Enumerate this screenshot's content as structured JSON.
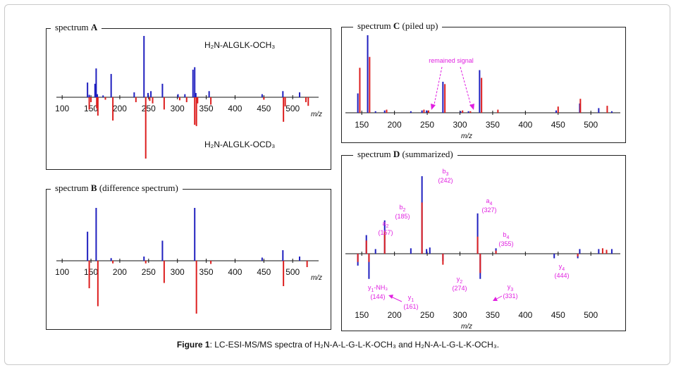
{
  "caption": {
    "label": "Figure 1",
    "text": ": LC-ESI-MS/MS spectra of H₂N-A-L-G-L-K-OCH₃ and H₂N-A-L-G-L-K-OCH₃."
  },
  "colors": {
    "blue": "#1f1fbf",
    "red": "#dd1f1f",
    "annotation": "#e020e0"
  },
  "chart_data": [
    {
      "id": "A",
      "type": "bar",
      "title_letter": "A",
      "title_prefix": "spectrum ",
      "title_suffix": "",
      "xlabel": "m/z",
      "xlim": [
        90,
        545
      ],
      "ticks": [
        100,
        150,
        200,
        250,
        300,
        350,
        400,
        450,
        500
      ],
      "labels": [
        {
          "text": "H₂N-ALGLK-OCH₃",
          "color": "#111111"
        },
        {
          "text": "H₂N-ALGLK-OCD₃",
          "color": "#111111"
        }
      ],
      "series": [
        {
          "name": "H₂N-ALGLK-OCH₃",
          "color": "#1f1fbf",
          "peaks": [
            [
              144,
              24
            ],
            [
              147,
              4
            ],
            [
              157,
              22
            ],
            [
              159,
              47
            ],
            [
              161,
              5
            ],
            [
              171,
              3
            ],
            [
              185,
              38
            ],
            [
              225,
              8
            ],
            [
              242,
              100
            ],
            [
              249,
              7
            ],
            [
              254,
              10
            ],
            [
              274,
              22
            ],
            [
              301,
              5
            ],
            [
              313,
              5
            ],
            [
              327,
              45
            ],
            [
              330,
              49
            ],
            [
              332,
              7
            ],
            [
              355,
              10
            ],
            [
              447,
              5
            ],
            [
              483,
              10
            ],
            [
              512,
              8
            ]
          ]
        },
        {
          "name": "H₂N-ALGLK-OCD₃",
          "color": "#dd1f1f",
          "peaks": [
            [
              147,
              -20
            ],
            [
              150,
              -8
            ],
            [
              160,
              -18
            ],
            [
              162,
              -30
            ],
            [
              175,
              -4
            ],
            [
              188,
              -38
            ],
            [
              228,
              -8
            ],
            [
              245,
              -100
            ],
            [
              252,
              -6
            ],
            [
              257,
              -10
            ],
            [
              277,
              -20
            ],
            [
              304,
              -5
            ],
            [
              316,
              -8
            ],
            [
              330,
              -45
            ],
            [
              333,
              -47
            ],
            [
              335,
              -10
            ],
            [
              358,
              -12
            ],
            [
              450,
              -4
            ],
            [
              484,
              -40
            ],
            [
              487,
              -15
            ],
            [
              523,
              -8
            ],
            [
              527,
              -14
            ]
          ]
        }
      ]
    },
    {
      "id": "B",
      "type": "bar",
      "title_letter": "B",
      "title_prefix": "spectrum ",
      "title_suffix": " (difference spectrum)",
      "xlabel": "m/z",
      "xlim": [
        90,
        545
      ],
      "ticks": [
        100,
        150,
        200,
        250,
        300,
        350,
        400,
        450,
        500
      ],
      "labels": [],
      "series": [
        {
          "color": "#1f1fbf",
          "peaks": [
            [
              144,
              55
            ],
            [
              159,
              100
            ],
            [
              185,
              5
            ],
            [
              242,
              8
            ],
            [
              274,
              38
            ],
            [
              330,
              100
            ],
            [
              447,
              6
            ],
            [
              483,
              20
            ],
            [
              512,
              8
            ]
          ]
        },
        {
          "color": "#dd1f1f",
          "peaks": [
            [
              147,
              -52
            ],
            [
              162,
              -86
            ],
            [
              188,
              -5
            ],
            [
              245,
              -5
            ],
            [
              277,
              -42
            ],
            [
              333,
              -100
            ],
            [
              358,
              -6
            ],
            [
              484,
              -48
            ],
            [
              525,
              -12
            ]
          ]
        }
      ]
    },
    {
      "id": "C",
      "type": "bar",
      "title_letter": "C",
      "title_prefix": "spectrum ",
      "title_suffix": " (piled up)",
      "xlabel": "m/z",
      "xlim": [
        125,
        545
      ],
      "ticks": [
        150,
        200,
        250,
        300,
        350,
        400,
        450,
        500
      ],
      "labels": [
        {
          "text": "remained signal",
          "color": "#e020e0"
        }
      ],
      "series": [
        {
          "color": "#1f1fbf",
          "peaks": [
            [
              144,
              25
            ],
            [
              159,
              100
            ],
            [
              171,
              2
            ],
            [
              185,
              3
            ],
            [
              225,
              2
            ],
            [
              242,
              3
            ],
            [
              249,
              3
            ],
            [
              274,
              40
            ],
            [
              301,
              2
            ],
            [
              313,
              2
            ],
            [
              330,
              55
            ],
            [
              447,
              3
            ],
            [
              483,
              12
            ],
            [
              512,
              6
            ],
            [
              532,
              2
            ]
          ]
        },
        {
          "color": "#dd1f1f",
          "peaks": [
            [
              147,
              58
            ],
            [
              162,
              72
            ],
            [
              188,
              4
            ],
            [
              245,
              4
            ],
            [
              252,
              3
            ],
            [
              277,
              37
            ],
            [
              304,
              3
            ],
            [
              316,
              2
            ],
            [
              333,
              45
            ],
            [
              358,
              4
            ],
            [
              450,
              8
            ],
            [
              484,
              18
            ],
            [
              525,
              9
            ]
          ]
        }
      ]
    },
    {
      "id": "D",
      "type": "bar",
      "title_letter": "D",
      "title_prefix": "spectrum ",
      "title_suffix": " (summarized)",
      "xlabel": "m/z",
      "xlim": [
        125,
        545
      ],
      "ticks": [
        150,
        200,
        250,
        300,
        350,
        400,
        450,
        500
      ],
      "labels": [],
      "annotations": [
        {
          "ion": "a",
          "sub": "2",
          "mz": "(157)"
        },
        {
          "ion": "b",
          "sub": "2",
          "mz": "(185)"
        },
        {
          "ion": "b",
          "sub": "3",
          "mz": "(242)"
        },
        {
          "ion": "a",
          "sub": "4",
          "mz": "(327)"
        },
        {
          "ion": "b",
          "sub": "4",
          "mz": "(355)"
        },
        {
          "ion": "y",
          "sub": "4",
          "mz": "(444)"
        },
        {
          "ion": "y",
          "sub": "1",
          "mz": "-NH₃ (144)"
        },
        {
          "ion": "y",
          "sub": "1",
          "mz": "(161)"
        },
        {
          "ion": "y",
          "sub": "2",
          "mz": "(274)"
        },
        {
          "ion": "y",
          "sub": "3",
          "mz": "(331)"
        }
      ],
      "series": [
        {
          "color": "#1f1fbf",
          "peaks": [
            [
              157,
              24
            ],
            [
              171,
              6
            ],
            [
              185,
              43
            ],
            [
              225,
              7
            ],
            [
              242,
              100
            ],
            [
              249,
              6
            ],
            [
              254,
              8
            ],
            [
              327,
              52
            ],
            [
              355,
              7
            ],
            [
              483,
              6
            ],
            [
              512,
              6
            ],
            [
              532,
              6
            ]
          ]
        },
        {
          "color": "#dd1f1f",
          "peaks": [
            [
              157,
              17
            ],
            [
              185,
              29
            ],
            [
              242,
              66
            ],
            [
              327,
              22
            ],
            [
              355,
              4
            ],
            [
              518,
              7
            ],
            [
              524,
              5
            ]
          ]
        },
        {
          "color": "#1f1fbf",
          "peaks": [
            [
              144,
              -26
            ],
            [
              161,
              -55
            ],
            [
              274,
              -16
            ],
            [
              331,
              -55
            ],
            [
              444,
              -10
            ],
            [
              480,
              -10
            ]
          ]
        },
        {
          "color": "#dd1f1f",
          "peaks": [
            [
              144,
              -18
            ],
            [
              161,
              -18
            ],
            [
              274,
              -24
            ],
            [
              331,
              -42
            ],
            [
              480,
              -6
            ]
          ]
        }
      ]
    }
  ]
}
